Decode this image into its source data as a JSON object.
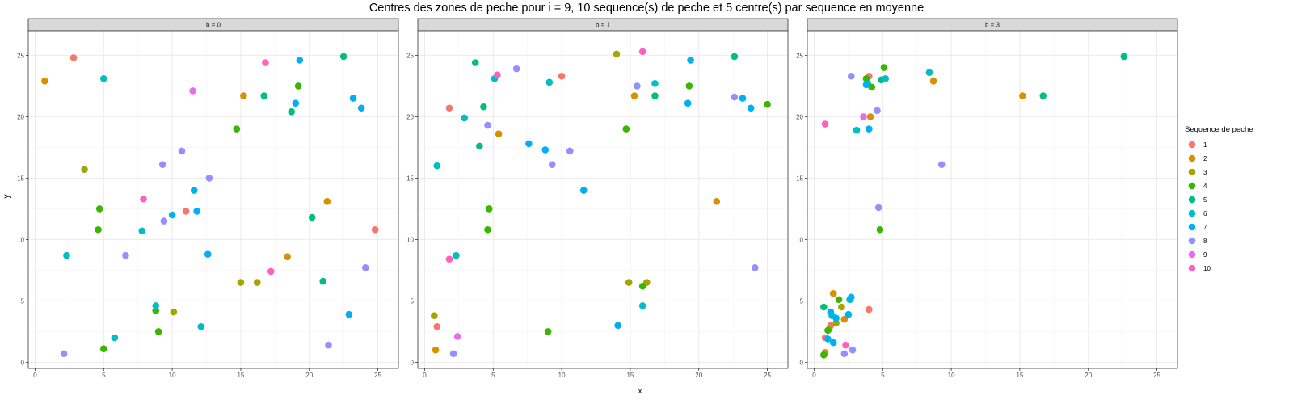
{
  "chart_data": {
    "type": "scatter",
    "title": "Centres des zones de peche pour i = 9, 10 sequence(s) de peche et 5 centre(s) par sequence en moyenne",
    "xlabel": "x",
    "ylabel": "y",
    "xlim": [
      -0.5,
      26.5
    ],
    "ylim": [
      -0.5,
      27
    ],
    "xticks": [
      0,
      5,
      10,
      15,
      20,
      25
    ],
    "yticks": [
      0,
      5,
      10,
      15,
      20,
      25
    ],
    "grid": true,
    "legend": {
      "title": "Sequence de peche",
      "position": "right",
      "entries": [
        "1",
        "2",
        "3",
        "4",
        "5",
        "6",
        "7",
        "8",
        "9",
        "10"
      ],
      "colors": [
        "#F8766D",
        "#D89000",
        "#A3A500",
        "#39B600",
        "#00BF7D",
        "#00BFC4",
        "#00B0F6",
        "#9590FF",
        "#E76BF3",
        "#FF62BC"
      ]
    },
    "panels": [
      {
        "label": "b = 0",
        "points": [
          {
            "s": 1,
            "x": 2.8,
            "y": 24.8
          },
          {
            "s": 1,
            "x": 11.0,
            "y": 12.3
          },
          {
            "s": 1,
            "x": 24.8,
            "y": 10.8
          },
          {
            "s": 2,
            "x": 0.7,
            "y": 22.9
          },
          {
            "s": 2,
            "x": 15.2,
            "y": 21.7
          },
          {
            "s": 2,
            "x": 21.3,
            "y": 13.1
          },
          {
            "s": 2,
            "x": 18.4,
            "y": 8.6
          },
          {
            "s": 3,
            "x": 3.6,
            "y": 15.7
          },
          {
            "s": 3,
            "x": 15.0,
            "y": 6.5
          },
          {
            "s": 3,
            "x": 16.2,
            "y": 6.5
          },
          {
            "s": 3,
            "x": 10.1,
            "y": 4.1
          },
          {
            "s": 4,
            "x": 19.2,
            "y": 22.5
          },
          {
            "s": 4,
            "x": 14.7,
            "y": 19.0
          },
          {
            "s": 4,
            "x": 4.7,
            "y": 12.5
          },
          {
            "s": 4,
            "x": 4.6,
            "y": 10.8
          },
          {
            "s": 4,
            "x": 8.8,
            "y": 4.2
          },
          {
            "s": 4,
            "x": 9.0,
            "y": 2.5
          },
          {
            "s": 4,
            "x": 5.0,
            "y": 1.1
          },
          {
            "s": 5,
            "x": 22.5,
            "y": 24.9
          },
          {
            "s": 5,
            "x": 16.7,
            "y": 21.7
          },
          {
            "s": 5,
            "x": 18.7,
            "y": 20.4
          },
          {
            "s": 5,
            "x": 20.2,
            "y": 11.8
          },
          {
            "s": 5,
            "x": 21.0,
            "y": 6.6
          },
          {
            "s": 6,
            "x": 5.0,
            "y": 23.1
          },
          {
            "s": 6,
            "x": 7.8,
            "y": 10.7
          },
          {
            "s": 6,
            "x": 2.3,
            "y": 8.7
          },
          {
            "s": 6,
            "x": 8.8,
            "y": 4.6
          },
          {
            "s": 6,
            "x": 5.8,
            "y": 2.0
          },
          {
            "s": 6,
            "x": 12.1,
            "y": 2.9
          },
          {
            "s": 7,
            "x": 19.3,
            "y": 24.6
          },
          {
            "s": 7,
            "x": 23.2,
            "y": 21.5
          },
          {
            "s": 7,
            "x": 23.8,
            "y": 20.7
          },
          {
            "s": 7,
            "x": 19.0,
            "y": 21.1
          },
          {
            "s": 7,
            "x": 11.6,
            "y": 14.0
          },
          {
            "s": 7,
            "x": 10.0,
            "y": 12.0
          },
          {
            "s": 7,
            "x": 11.8,
            "y": 12.3
          },
          {
            "s": 7,
            "x": 12.6,
            "y": 8.8
          },
          {
            "s": 7,
            "x": 22.9,
            "y": 3.9
          },
          {
            "s": 8,
            "x": 10.7,
            "y": 17.2
          },
          {
            "s": 8,
            "x": 9.3,
            "y": 16.1
          },
          {
            "s": 8,
            "x": 12.7,
            "y": 15.0
          },
          {
            "s": 8,
            "x": 9.4,
            "y": 11.5
          },
          {
            "s": 8,
            "x": 6.6,
            "y": 8.7
          },
          {
            "s": 8,
            "x": 2.1,
            "y": 0.7
          },
          {
            "s": 8,
            "x": 24.1,
            "y": 7.7
          },
          {
            "s": 8,
            "x": 21.4,
            "y": 1.4
          },
          {
            "s": 9,
            "x": 11.5,
            "y": 22.1
          },
          {
            "s": 10,
            "x": 16.8,
            "y": 24.4
          },
          {
            "s": 10,
            "x": 7.9,
            "y": 13.3
          },
          {
            "s": 10,
            "x": 17.2,
            "y": 7.4
          }
        ]
      },
      {
        "label": "b = 1",
        "points": [
          {
            "s": 1,
            "x": 10.0,
            "y": 23.3
          },
          {
            "s": 1,
            "x": 1.8,
            "y": 20.7
          },
          {
            "s": 1,
            "x": 0.9,
            "y": 2.9
          },
          {
            "s": 2,
            "x": 15.3,
            "y": 21.7
          },
          {
            "s": 2,
            "x": 5.4,
            "y": 18.6
          },
          {
            "s": 2,
            "x": 21.3,
            "y": 13.1
          },
          {
            "s": 2,
            "x": 0.8,
            "y": 1.0
          },
          {
            "s": 3,
            "x": 14.0,
            "y": 25.1
          },
          {
            "s": 3,
            "x": 14.9,
            "y": 6.5
          },
          {
            "s": 3,
            "x": 16.2,
            "y": 6.5
          },
          {
            "s": 3,
            "x": 0.7,
            "y": 3.8
          },
          {
            "s": 4,
            "x": 19.3,
            "y": 22.5
          },
          {
            "s": 4,
            "x": 14.7,
            "y": 19.0
          },
          {
            "s": 4,
            "x": 25.0,
            "y": 21.0
          },
          {
            "s": 4,
            "x": 4.7,
            "y": 12.5
          },
          {
            "s": 4,
            "x": 4.6,
            "y": 10.8
          },
          {
            "s": 4,
            "x": 15.9,
            "y": 6.2
          },
          {
            "s": 4,
            "x": 9.0,
            "y": 2.5
          },
          {
            "s": 5,
            "x": 3.7,
            "y": 24.4
          },
          {
            "s": 5,
            "x": 22.6,
            "y": 24.9
          },
          {
            "s": 5,
            "x": 4.3,
            "y": 20.8
          },
          {
            "s": 5,
            "x": 16.8,
            "y": 21.7
          },
          {
            "s": 5,
            "x": 4.0,
            "y": 17.6
          },
          {
            "s": 6,
            "x": 5.1,
            "y": 23.1
          },
          {
            "s": 6,
            "x": 9.1,
            "y": 22.8
          },
          {
            "s": 6,
            "x": 16.8,
            "y": 22.7
          },
          {
            "s": 6,
            "x": 2.9,
            "y": 19.9
          },
          {
            "s": 6,
            "x": 0.9,
            "y": 16.0
          },
          {
            "s": 6,
            "x": 2.3,
            "y": 8.7
          },
          {
            "s": 6,
            "x": 15.9,
            "y": 4.6
          },
          {
            "s": 7,
            "x": 19.4,
            "y": 24.6
          },
          {
            "s": 7,
            "x": 23.2,
            "y": 21.5
          },
          {
            "s": 7,
            "x": 23.8,
            "y": 20.7
          },
          {
            "s": 7,
            "x": 19.2,
            "y": 21.1
          },
          {
            "s": 7,
            "x": 7.6,
            "y": 17.8
          },
          {
            "s": 7,
            "x": 8.8,
            "y": 17.3
          },
          {
            "s": 7,
            "x": 11.6,
            "y": 14.0
          },
          {
            "s": 7,
            "x": 14.1,
            "y": 3.0
          },
          {
            "s": 8,
            "x": 6.7,
            "y": 23.9
          },
          {
            "s": 8,
            "x": 15.5,
            "y": 22.5
          },
          {
            "s": 8,
            "x": 22.6,
            "y": 21.6
          },
          {
            "s": 8,
            "x": 4.6,
            "y": 19.3
          },
          {
            "s": 8,
            "x": 10.6,
            "y": 17.2
          },
          {
            "s": 8,
            "x": 9.3,
            "y": 16.1
          },
          {
            "s": 8,
            "x": 24.1,
            "y": 7.7
          },
          {
            "s": 8,
            "x": 2.1,
            "y": 0.7
          },
          {
            "s": 9,
            "x": 2.4,
            "y": 2.1
          },
          {
            "s": 10,
            "x": 15.9,
            "y": 25.3
          },
          {
            "s": 10,
            "x": 5.3,
            "y": 23.4
          },
          {
            "s": 10,
            "x": 1.8,
            "y": 8.4
          }
        ]
      },
      {
        "label": "b = 3",
        "points": [
          {
            "s": 1,
            "x": 4.0,
            "y": 23.3
          },
          {
            "s": 1,
            "x": 4.0,
            "y": 4.3
          },
          {
            "s": 1,
            "x": 1.2,
            "y": 3.0
          },
          {
            "s": 1,
            "x": 0.8,
            "y": 2.0
          },
          {
            "s": 2,
            "x": 8.7,
            "y": 22.9
          },
          {
            "s": 2,
            "x": 15.2,
            "y": 21.7
          },
          {
            "s": 2,
            "x": 4.1,
            "y": 20.0
          },
          {
            "s": 2,
            "x": 1.4,
            "y": 5.6
          },
          {
            "s": 2,
            "x": 2.2,
            "y": 3.5
          },
          {
            "s": 2,
            "x": 0.8,
            "y": 0.8
          },
          {
            "s": 3,
            "x": 2.0,
            "y": 4.5
          },
          {
            "s": 3,
            "x": 1.6,
            "y": 3.2
          },
          {
            "s": 3,
            "x": 1.1,
            "y": 2.7
          },
          {
            "s": 4,
            "x": 5.1,
            "y": 24.0
          },
          {
            "s": 4,
            "x": 3.8,
            "y": 23.1
          },
          {
            "s": 4,
            "x": 4.2,
            "y": 22.4
          },
          {
            "s": 4,
            "x": 4.8,
            "y": 10.8
          },
          {
            "s": 4,
            "x": 1.8,
            "y": 5.1
          },
          {
            "s": 4,
            "x": 1.0,
            "y": 2.6
          },
          {
            "s": 4,
            "x": 0.7,
            "y": 0.6
          },
          {
            "s": 5,
            "x": 22.6,
            "y": 24.9
          },
          {
            "s": 5,
            "x": 16.7,
            "y": 21.7
          },
          {
            "s": 5,
            "x": 3.9,
            "y": 22.7
          },
          {
            "s": 5,
            "x": 4.9,
            "y": 23.0
          },
          {
            "s": 5,
            "x": 0.7,
            "y": 4.5
          },
          {
            "s": 6,
            "x": 8.4,
            "y": 23.6
          },
          {
            "s": 6,
            "x": 5.2,
            "y": 23.1
          },
          {
            "s": 6,
            "x": 3.1,
            "y": 18.9
          },
          {
            "s": 6,
            "x": 1.3,
            "y": 3.8
          },
          {
            "s": 6,
            "x": 2.6,
            "y": 5.1
          },
          {
            "s": 7,
            "x": 3.8,
            "y": 22.6
          },
          {
            "s": 7,
            "x": 4.0,
            "y": 19.0
          },
          {
            "s": 7,
            "x": 2.7,
            "y": 5.3
          },
          {
            "s": 7,
            "x": 1.2,
            "y": 4.1
          },
          {
            "s": 7,
            "x": 1.6,
            "y": 3.6
          },
          {
            "s": 7,
            "x": 2.5,
            "y": 3.9
          },
          {
            "s": 7,
            "x": 1.0,
            "y": 1.9
          },
          {
            "s": 7,
            "x": 1.4,
            "y": 1.6
          },
          {
            "s": 8,
            "x": 2.7,
            "y": 23.3
          },
          {
            "s": 8,
            "x": 4.6,
            "y": 20.5
          },
          {
            "s": 8,
            "x": 9.3,
            "y": 16.1
          },
          {
            "s": 8,
            "x": 4.7,
            "y": 12.6
          },
          {
            "s": 8,
            "x": 2.8,
            "y": 1.0
          },
          {
            "s": 8,
            "x": 2.2,
            "y": 0.7
          },
          {
            "s": 9,
            "x": 3.6,
            "y": 20.0
          },
          {
            "s": 10,
            "x": 0.8,
            "y": 19.4
          },
          {
            "s": 10,
            "x": 2.3,
            "y": 1.4
          }
        ]
      }
    ]
  }
}
